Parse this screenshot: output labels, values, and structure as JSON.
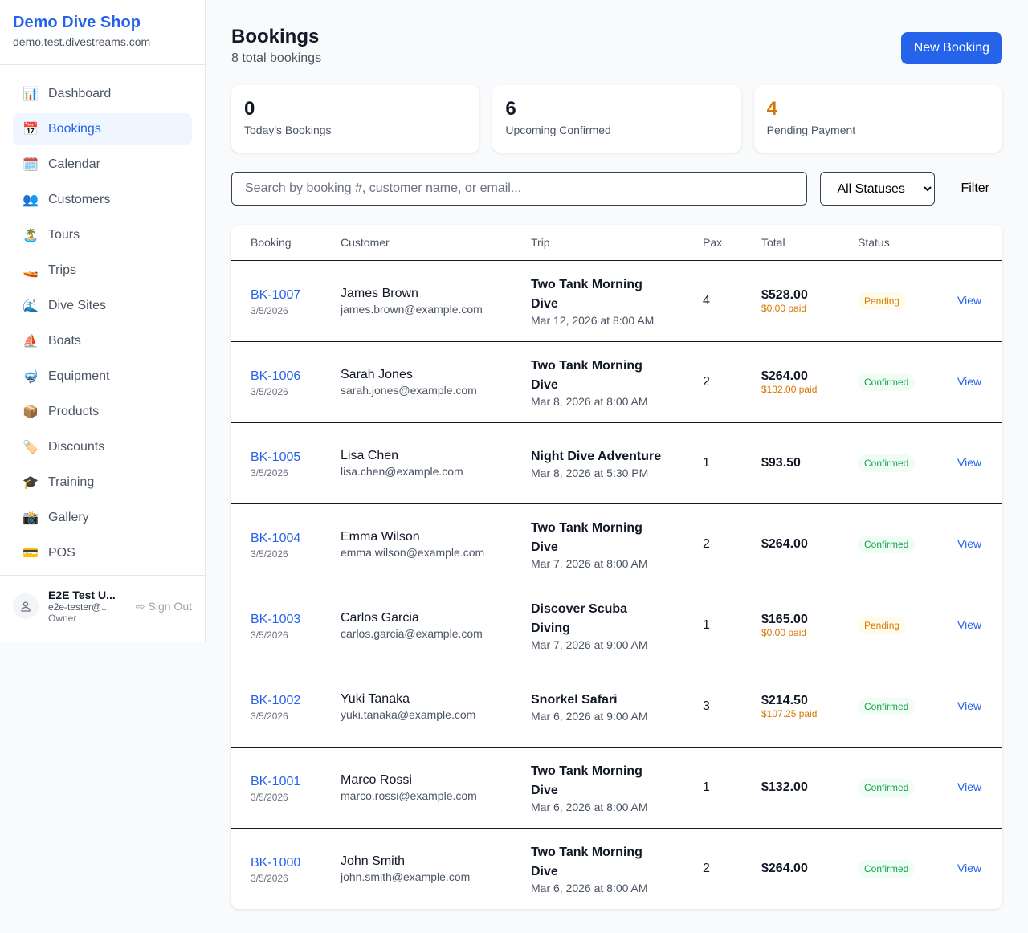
{
  "shop": {
    "name": "Demo Dive Shop",
    "domain": "demo.test.divestreams.com"
  },
  "nav": [
    {
      "label": "Dashboard",
      "icon": "📊",
      "active": false
    },
    {
      "label": "Bookings",
      "icon": "📅",
      "active": true
    },
    {
      "label": "Calendar",
      "icon": "🗓️",
      "active": false
    },
    {
      "label": "Customers",
      "icon": "👥",
      "active": false
    },
    {
      "label": "Tours",
      "icon": "🏝️",
      "active": false
    },
    {
      "label": "Trips",
      "icon": "🚤",
      "active": false
    },
    {
      "label": "Dive Sites",
      "icon": "🌊",
      "active": false
    },
    {
      "label": "Boats",
      "icon": "⛵",
      "active": false
    },
    {
      "label": "Equipment",
      "icon": "🤿",
      "active": false
    },
    {
      "label": "Products",
      "icon": "📦",
      "active": false
    },
    {
      "label": "Discounts",
      "icon": "🏷️",
      "active": false
    },
    {
      "label": "Training",
      "icon": "🎓",
      "active": false
    },
    {
      "label": "Gallery",
      "icon": "📸",
      "active": false
    },
    {
      "label": "POS",
      "icon": "💳",
      "active": false
    }
  ],
  "user": {
    "name": "E2E Test U...",
    "email": "e2e-tester@...",
    "role": "Owner",
    "sign_out": "Sign Out"
  },
  "page": {
    "title": "Bookings",
    "subtitle": "8 total bookings",
    "new_button": "New Booking"
  },
  "stats": [
    {
      "value": "0",
      "label": "Today's Bookings",
      "color": "#111827"
    },
    {
      "value": "6",
      "label": "Upcoming Confirmed",
      "color": "#111827"
    },
    {
      "value": "4",
      "label": "Pending Payment",
      "color": "#d97706"
    }
  ],
  "filters": {
    "search_placeholder": "Search by booking #, customer name, or email...",
    "status": "All Statuses",
    "filter_button": "Filter"
  },
  "table": {
    "headers": [
      "Booking",
      "Customer",
      "Trip",
      "Pax",
      "Total",
      "Status",
      ""
    ],
    "rows": [
      {
        "id": "BK-1007",
        "date": "3/5/2026",
        "name": "James Brown",
        "email": "james.brown@example.com",
        "trip": "Two Tank Morning Dive",
        "time": "Mar 12, 2026 at 8:00 AM",
        "pax": "4",
        "total": "$528.00",
        "paid": "$0.00 paid",
        "status": "Pending",
        "action": "View"
      },
      {
        "id": "BK-1006",
        "date": "3/5/2026",
        "name": "Sarah Jones",
        "email": "sarah.jones@example.com",
        "trip": "Two Tank Morning Dive",
        "time": "Mar 8, 2026 at 8:00 AM",
        "pax": "2",
        "total": "$264.00",
        "paid": "$132.00 paid",
        "status": "Confirmed",
        "action": "View"
      },
      {
        "id": "BK-1005",
        "date": "3/5/2026",
        "name": "Lisa Chen",
        "email": "lisa.chen@example.com",
        "trip": "Night Dive Adventure",
        "time": "Mar 8, 2026 at 5:30 PM",
        "pax": "1",
        "total": "$93.50",
        "paid": null,
        "status": "Confirmed",
        "action": "View"
      },
      {
        "id": "BK-1004",
        "date": "3/5/2026",
        "name": "Emma Wilson",
        "email": "emma.wilson@example.com",
        "trip": "Two Tank Morning Dive",
        "time": "Mar 7, 2026 at 8:00 AM",
        "pax": "2",
        "total": "$264.00",
        "paid": null,
        "status": "Confirmed",
        "action": "View"
      },
      {
        "id": "BK-1003",
        "date": "3/5/2026",
        "name": "Carlos Garcia",
        "email": "carlos.garcia@example.com",
        "trip": "Discover Scuba Diving",
        "time": "Mar 7, 2026 at 9:00 AM",
        "pax": "1",
        "total": "$165.00",
        "paid": "$0.00 paid",
        "status": "Pending",
        "action": "View"
      },
      {
        "id": "BK-1002",
        "date": "3/5/2026",
        "name": "Yuki Tanaka",
        "email": "yuki.tanaka@example.com",
        "trip": "Snorkel Safari",
        "time": "Mar 6, 2026 at 9:00 AM",
        "pax": "3",
        "total": "$214.50",
        "paid": "$107.25 paid",
        "status": "Confirmed",
        "action": "View"
      },
      {
        "id": "BK-1001",
        "date": "3/5/2026",
        "name": "Marco Rossi",
        "email": "marco.rossi@example.com",
        "trip": "Two Tank Morning Dive",
        "time": "Mar 6, 2026 at 8:00 AM",
        "pax": "1",
        "total": "$132.00",
        "paid": null,
        "status": "Confirmed",
        "action": "View"
      },
      {
        "id": "BK-1000",
        "date": "3/5/2026",
        "name": "John Smith",
        "email": "john.smith@example.com",
        "trip": "Two Tank Morning Dive",
        "time": "Mar 6, 2026 at 8:00 AM",
        "pax": "2",
        "total": "$264.00",
        "paid": null,
        "status": "Confirmed",
        "action": "View"
      }
    ]
  }
}
